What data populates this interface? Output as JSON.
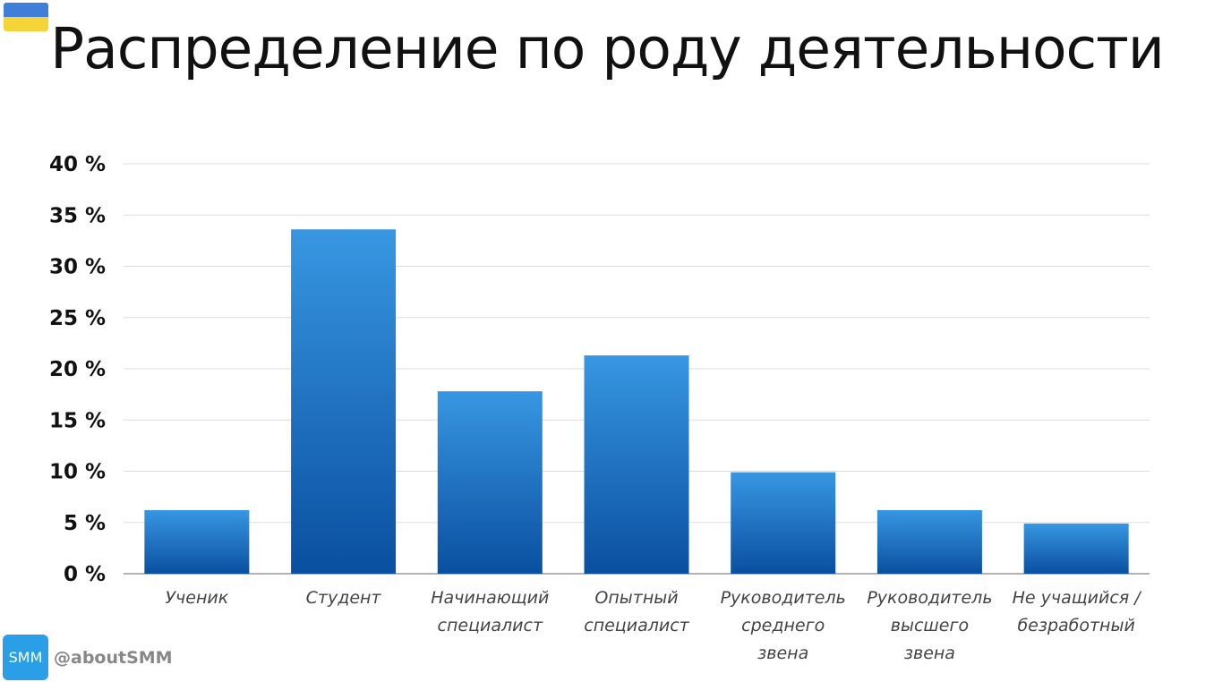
{
  "page": {
    "title": "Распределение по роду деятельности",
    "flag_colors": [
      "#3f7fd9",
      "#f5d43a"
    ],
    "brand": {
      "logo_text": "SMM",
      "handle": "@aboutSMM",
      "logo_color": "#2a9ee6"
    }
  },
  "chart_data": {
    "type": "bar",
    "title": "",
    "xlabel": "",
    "ylabel": "",
    "ylim": [
      0,
      40
    ],
    "yticks": [
      0,
      5,
      10,
      15,
      20,
      25,
      30,
      35,
      40
    ],
    "ytick_labels": [
      "0 %",
      "5 %",
      "10 %",
      "15 %",
      "20 %",
      "25 %",
      "30 %",
      "35 %",
      "40 %"
    ],
    "grid": true,
    "legend": "none",
    "bar_color_top": "#3897e2",
    "bar_color_bottom": "#0a4fa0",
    "categories": [
      [
        "Ученик"
      ],
      [
        "Студент"
      ],
      [
        "Начинающий",
        "специалист"
      ],
      [
        "Опытный",
        "специалист"
      ],
      [
        "Руководитель",
        "среднего",
        "звена"
      ],
      [
        "Руководитель",
        "высшего",
        "звена"
      ],
      [
        "Не учащийся /",
        "безработный"
      ]
    ],
    "values": [
      6.2,
      33.6,
      17.8,
      21.3,
      9.9,
      6.2,
      4.9
    ]
  }
}
